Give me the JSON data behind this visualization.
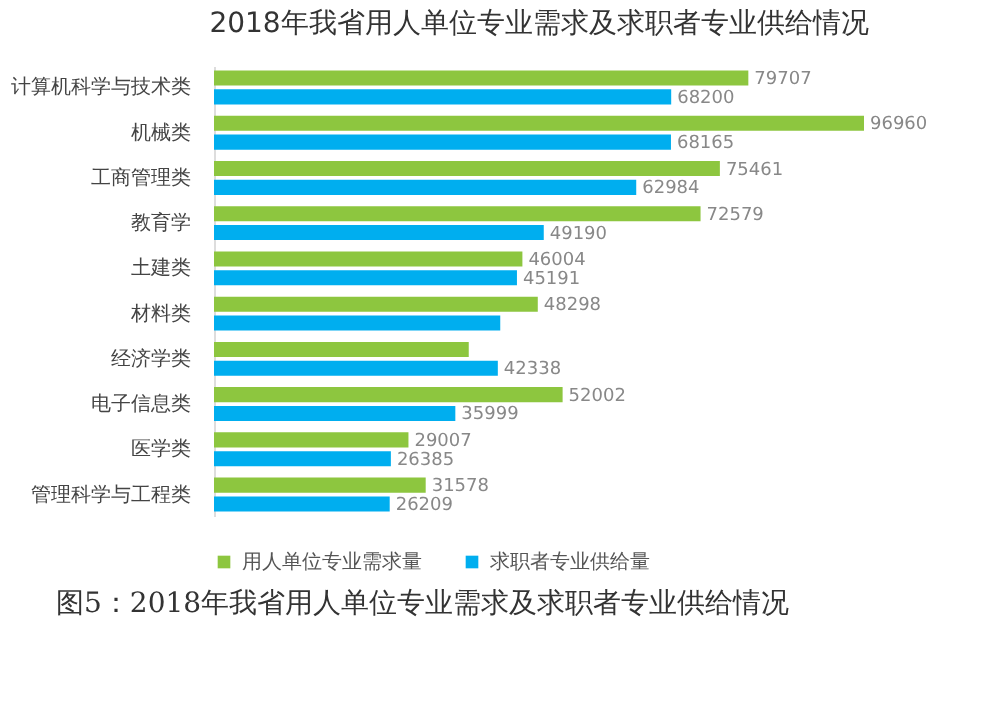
{
  "chart_data": {
    "type": "bar",
    "orientation": "horizontal",
    "title": "2018年我省用人单位专业需求及求职者专业供给情况",
    "categories": [
      "计算机科学与技术类",
      "机械类",
      "工商管理类",
      "教育学",
      "土建类",
      "材料类",
      "经济学类",
      "电子信息类",
      "医学类",
      "管理科学与工程类"
    ],
    "series": [
      {
        "name": "用人单位专业需求量",
        "color": "#8dc63f",
        "values": [
          79707,
          96960,
          75461,
          72579,
          46004,
          48298,
          38000,
          52002,
          29007,
          31578
        ],
        "value_labels": [
          "79707",
          "96960",
          "75461",
          "72579",
          "46004",
          "48298",
          null,
          "52002",
          "29007",
          "31578"
        ]
      },
      {
        "name": "求职者专业供给量",
        "color": "#00aeef",
        "values": [
          68200,
          68165,
          62984,
          49190,
          45191,
          42700,
          42338,
          35999,
          26385,
          26209
        ],
        "value_labels": [
          "68200",
          "68165",
          "62984",
          "49190",
          "45191",
          null,
          "42338",
          "35999",
          "26385",
          "26209"
        ]
      }
    ],
    "legend": "bottom",
    "annotations": [
      "图5：2018年我省用人单位专业需求及求职者专业供给情况"
    ]
  }
}
